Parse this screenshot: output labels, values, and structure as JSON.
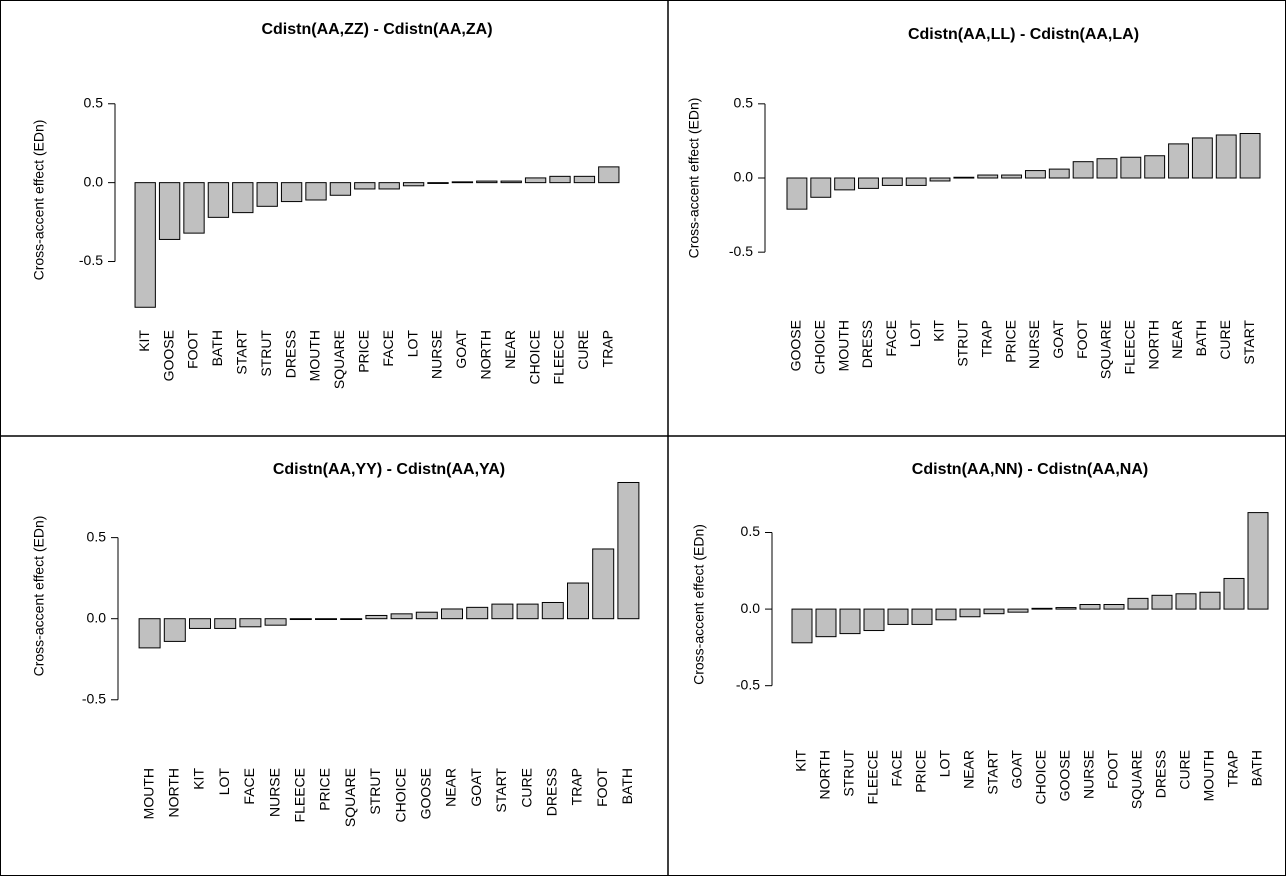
{
  "chart_data": [
    {
      "type": "bar",
      "title": "Cdistn(AA,ZZ) - Cdistn(AA,ZA)",
      "ylabel": "Cross-accent effect (EDn)",
      "color": "#c0c0c0",
      "categories": [
        "KIT",
        "GOOSE",
        "FOOT",
        "BATH",
        "START",
        "STRUT",
        "DRESS",
        "MOUTH",
        "SQUARE",
        "PRICE",
        "FACE",
        "LOT",
        "NURSE",
        "GOAT",
        "NORTH",
        "NEAR",
        "CHOICE",
        "FLEECE",
        "CURE",
        "TRAP"
      ],
      "values": [
        -0.79,
        -0.36,
        -0.32,
        -0.22,
        -0.19,
        -0.15,
        -0.12,
        -0.11,
        -0.08,
        -0.04,
        -0.04,
        -0.02,
        -0.005,
        0.005,
        0.01,
        0.01,
        0.03,
        0.04,
        0.04,
        0.1
      ],
      "ylim": [
        -0.82,
        0.6
      ],
      "yticks": [
        -0.5,
        {
          "value": 0,
          "label": "0.0"
        },
        0.5
      ]
    },
    {
      "type": "bar",
      "title": "Cdistn(AA,LL) - Cdistn(AA,LA)",
      "ylabel": "Cross-accent effect (EDn)",
      "color": "#c0c0c0",
      "categories": [
        "GOOSE",
        "CHOICE",
        "MOUTH",
        "DRESS",
        "FACE",
        "LOT",
        "KIT",
        "STRUT",
        "TRAP",
        "PRICE",
        "NURSE",
        "GOAT",
        "FOOT",
        "SQUARE",
        "FLEECE",
        "NORTH",
        "NEAR",
        "BATH",
        "CURE",
        "START"
      ],
      "values": [
        -0.21,
        -0.13,
        -0.08,
        -0.07,
        -0.05,
        -0.05,
        -0.02,
        0.005,
        0.02,
        0.02,
        0.05,
        0.06,
        0.11,
        0.13,
        0.14,
        0.15,
        0.23,
        0.27,
        0.29,
        0.3
      ],
      "ylim": [
        -0.6,
        0.6
      ],
      "yticks": [
        -0.5,
        {
          "value": 0,
          "label": "0.0"
        },
        0.5
      ]
    },
    {
      "type": "bar",
      "title": "Cdistn(AA,YY) - Cdistn(AA,YA)",
      "ylabel": "Cross-accent effect (EDn)",
      "color": "#c0c0c0",
      "categories": [
        "MOUTH",
        "NORTH",
        "KIT",
        "LOT",
        "FACE",
        "NURSE",
        "FLEECE",
        "PRICE",
        "SQUARE",
        "STRUT",
        "CHOICE",
        "GOOSE",
        "NEAR",
        "GOAT",
        "START",
        "CURE",
        "DRESS",
        "TRAP",
        "FOOT",
        "BATH"
      ],
      "values": [
        -0.18,
        -0.14,
        -0.06,
        -0.06,
        -0.05,
        -0.04,
        -0.005,
        0,
        0,
        0.02,
        0.03,
        0.04,
        0.06,
        0.07,
        0.09,
        0.09,
        0.1,
        0.22,
        0.43,
        0.84
      ],
      "ylim": [
        -0.6,
        0.88
      ],
      "yticks": [
        -0.5,
        {
          "value": 0,
          "label": "0.0"
        },
        0.5
      ]
    },
    {
      "type": "bar",
      "title": "Cdistn(AA,NN) - Cdistn(AA,NA)",
      "ylabel": "Cross-accent effect (EDn)",
      "color": "#c0c0c0",
      "categories": [
        "KIT",
        "NORTH",
        "STRUT",
        "FLEECE",
        "FACE",
        "PRICE",
        "LOT",
        "NEAR",
        "START",
        "GOAT",
        "CHOICE",
        "GOOSE",
        "NURSE",
        "FOOT",
        "SQUARE",
        "DRESS",
        "CURE",
        "MOUTH",
        "TRAP",
        "BATH"
      ],
      "values": [
        -0.22,
        -0.18,
        -0.16,
        -0.14,
        -0.1,
        -0.1,
        -0.07,
        -0.05,
        -0.03,
        -0.02,
        0.005,
        0.01,
        0.03,
        0.03,
        0.07,
        0.09,
        0.1,
        0.11,
        0.2,
        0.63
      ],
      "ylim": [
        -0.6,
        0.66
      ],
      "yticks": [
        -0.5,
        {
          "value": 0,
          "label": "0.0"
        },
        0.5
      ]
    }
  ]
}
